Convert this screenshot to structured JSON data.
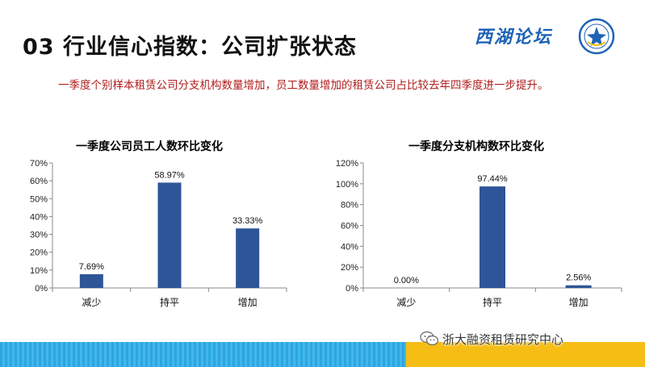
{
  "slide": {
    "title": "03 行业信心指数：公司扩张状态",
    "summary": "一季度个别样本租赁公司分支机构数量增加，员工数量增加的租赁公司占比较去年四季度进一步提升。"
  },
  "logo": {
    "text": "西湖论坛",
    "icon": "seal-emblem-icon"
  },
  "watermark": {
    "text": "浙大融资租赁研究中心",
    "icon": "wechat-icon"
  },
  "colors": {
    "bar": "#2e5597",
    "title_red": "#b01c1c",
    "footer_blue": "#29a7e2",
    "footer_yellow": "#f6bd15"
  },
  "chart_data": [
    {
      "type": "bar",
      "title": "一季度公司员工人数环比变化",
      "categories": [
        "减少",
        "持平",
        "增加"
      ],
      "values": [
        7.69,
        58.97,
        33.33
      ],
      "data_labels": [
        "7.69%",
        "58.97%",
        "33.33%"
      ],
      "ylim": [
        0,
        70
      ],
      "yticks": [
        0,
        10,
        20,
        30,
        40,
        50,
        60,
        70
      ],
      "ytick_labels": [
        "0%",
        "10%",
        "20%",
        "30%",
        "40%",
        "50%",
        "60%",
        "70%"
      ],
      "grid": false,
      "legend": "none"
    },
    {
      "type": "bar",
      "title": "一季度分支机构数环比变化",
      "categories": [
        "减少",
        "持平",
        "增加"
      ],
      "values": [
        0.0,
        97.44,
        2.56
      ],
      "data_labels": [
        "0.00%",
        "97.44%",
        "2.56%"
      ],
      "ylim": [
        0,
        120
      ],
      "yticks": [
        0,
        20,
        40,
        60,
        80,
        100,
        120
      ],
      "ytick_labels": [
        "0%",
        "20%",
        "40%",
        "60%",
        "80%",
        "100%",
        "120%"
      ],
      "grid": false,
      "legend": "none"
    }
  ]
}
